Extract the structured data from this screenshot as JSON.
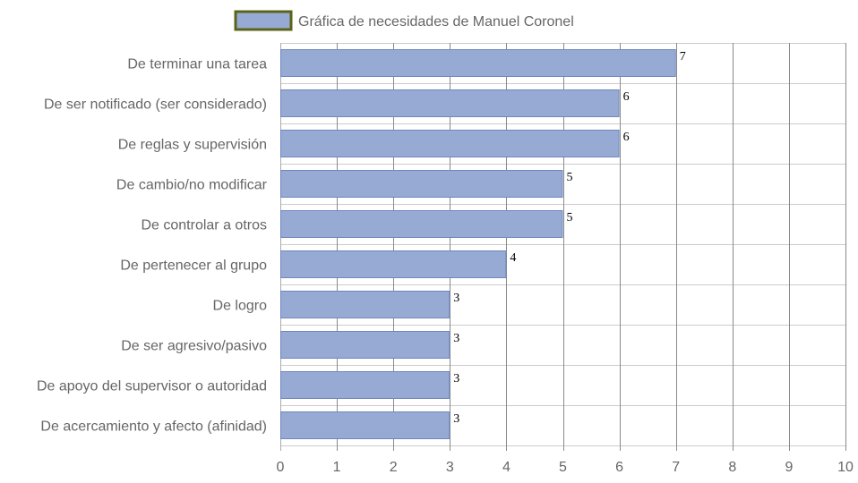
{
  "chart_data": {
    "type": "bar",
    "orientation": "horizontal",
    "categories": [
      "De terminar una tarea",
      "De ser notificado (ser considerado)",
      "De reglas y supervisión",
      "De cambio/no modificar",
      "De controlar a otros",
      "De pertenecer al grupo",
      "De logro",
      "De ser agresivo/pasivo",
      "De apoyo del supervisor o autoridad",
      "De acercamiento y afecto (afinidad)"
    ],
    "series": [
      {
        "name": "Gráfica de necesidades de Manuel Coronel",
        "values": [
          7,
          6,
          6,
          5,
          5,
          4,
          3,
          3,
          3,
          3
        ]
      }
    ],
    "xlim": [
      0,
      10
    ],
    "xticks": [
      0,
      1,
      2,
      3,
      4,
      5,
      6,
      7,
      8,
      9,
      10
    ],
    "grid": true,
    "legend": "top-center",
    "colors": {
      "bar_fill": "#97aad4",
      "bar_stroke": "#6f87bf",
      "legend_swatch_fill": "#97aad4",
      "legend_swatch_border": "#5a6418",
      "grid": "#cccccc",
      "vertical_grid": "#8a8a8a",
      "text": "#666666",
      "value_text": "#000000"
    }
  }
}
